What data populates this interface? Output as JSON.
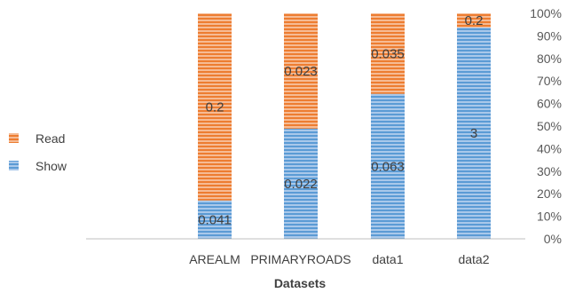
{
  "chart_data": {
    "type": "bar",
    "stacked": "percent",
    "categories": [
      "AREALM",
      "PRIMARYROADS",
      "data1",
      "data2"
    ],
    "series": [
      {
        "name": "Show",
        "values": [
          0.041,
          0.022,
          0.063,
          3
        ],
        "labels": [
          "0.041",
          "0.022",
          "0.063",
          "3"
        ],
        "color": "#5b9bd5"
      },
      {
        "name": "Read",
        "values": [
          0.2,
          0.023,
          0.035,
          0.2
        ],
        "labels": [
          "0.2",
          "0.023",
          "0.035",
          "0.2"
        ],
        "color": "#ed7d31"
      }
    ],
    "xlabel": "Datasets",
    "ylabel": "",
    "ylim": [
      0,
      100
    ],
    "yticks": [
      "0%",
      "10%",
      "20%",
      "30%",
      "40%",
      "50%",
      "60%",
      "70%",
      "80%",
      "90%",
      "100%"
    ],
    "legend": {
      "position": "left",
      "entries": [
        "Read",
        "Show"
      ]
    },
    "grid": false
  }
}
